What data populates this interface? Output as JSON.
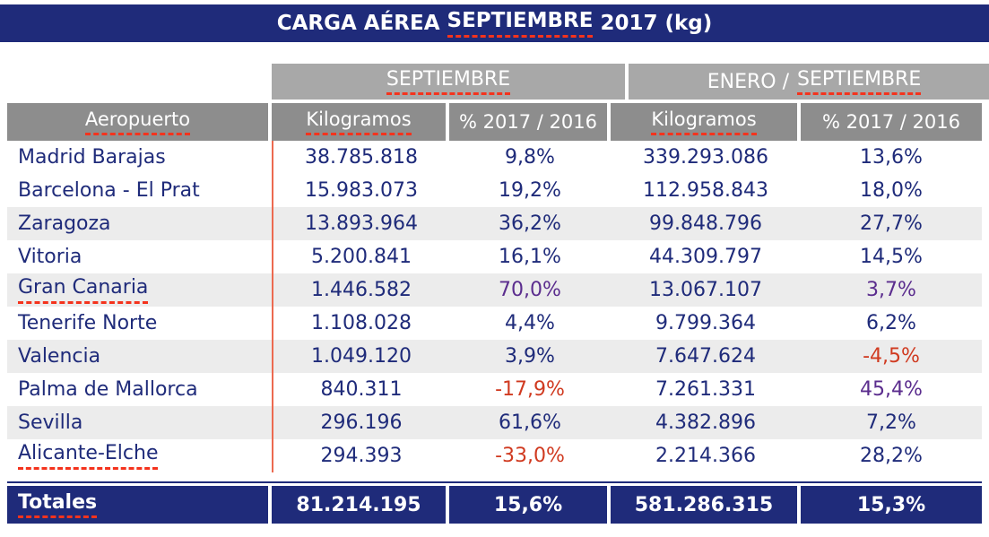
{
  "colors": {
    "navy": "#1f2b7a",
    "group_header_gray": "#a8a8a8",
    "column_header_gray": "#8d8d8d",
    "row_stripe": "#ececec",
    "negative_red": "#d03a20",
    "highlight_purple": "#5b2d8e",
    "squiggle_red": "#f4331d",
    "column_rule_orange": "#ec6a50"
  },
  "title": {
    "pre": "CARGA AÉREA",
    "marked": "SEPTIEMBRE",
    "post": "2017 (kg)"
  },
  "groups": {
    "sep": {
      "marked": "SEPTIEMBRE"
    },
    "ytd": {
      "pre": "ENERO /",
      "marked": "SEPTIEMBRE"
    }
  },
  "columns": {
    "airport": "Aeropuerto",
    "kg": "Kilogramos",
    "pct": "% 2017 / 2016"
  },
  "rows": [
    {
      "name": "Madrid Barajas",
      "sep_kg": "38.785.818",
      "sep_pct": "9,8%",
      "ytd_kg": "339.293.086",
      "ytd_pct": "13,6%"
    },
    {
      "name": "Barcelona - El Prat",
      "sep_kg": "15.983.073",
      "sep_pct": "19,2%",
      "ytd_kg": "112.958.843",
      "ytd_pct": "18,0%"
    },
    {
      "name": "Zaragoza",
      "sep_kg": "13.893.964",
      "sep_pct": "36,2%",
      "ytd_kg": "99.848.796",
      "ytd_pct": "27,7%"
    },
    {
      "name": "Vitoria",
      "sep_kg": "5.200.841",
      "sep_pct": "16,1%",
      "ytd_kg": "44.309.797",
      "ytd_pct": "14,5%"
    },
    {
      "name": "Gran Canaria",
      "mark": "marked",
      "sep_kg": "1.446.582",
      "sep_pct": "70,0%",
      "sep_tone": "purple",
      "ytd_kg": "13.067.107",
      "ytd_pct": "3,7%",
      "ytd_tone": "purple"
    },
    {
      "name": "Tenerife Norte",
      "sep_kg": "1.108.028",
      "sep_pct": "4,4%",
      "ytd_kg": "9.799.364",
      "ytd_pct": "6,2%"
    },
    {
      "name": "Valencia",
      "sep_kg": "1.049.120",
      "sep_pct": "3,9%",
      "ytd_kg": "7.647.624",
      "ytd_pct": "-4,5%",
      "ytd_tone": "red"
    },
    {
      "name": "Palma de Mallorca",
      "sep_kg": "840.311",
      "sep_pct": "-17,9%",
      "sep_tone": "red",
      "ytd_kg": "7.261.331",
      "ytd_pct": "45,4%",
      "ytd_tone": "purple"
    },
    {
      "name": "Sevilla",
      "sep_kg": "296.196",
      "sep_pct": "61,6%",
      "ytd_kg": "4.382.896",
      "ytd_pct": "7,2%"
    },
    {
      "name": "Alicante-Elche",
      "mark": "marked",
      "sep_kg": "294.393",
      "sep_pct": "-33,0%",
      "sep_tone": "red",
      "ytd_kg": "2.214.366",
      "ytd_pct": "28,2%"
    }
  ],
  "totals": {
    "label": "Totales",
    "sep_kg": "81.214.195",
    "sep_pct": "15,6%",
    "ytd_kg": "581.286.315",
    "ytd_pct": "15,3%"
  },
  "chart_data": {
    "type": "table",
    "title": "CARGA AÉREA SEPTIEMBRE 2017 (kg)",
    "units": "kg",
    "column_groups": [
      {
        "label": "SEPTIEMBRE",
        "columns": [
          "Kilogramos",
          "% 2017 / 2016"
        ]
      },
      {
        "label": "ENERO / SEPTIEMBRE",
        "columns": [
          "Kilogramos",
          "% 2017 / 2016"
        ]
      }
    ],
    "columns": [
      "Aeropuerto",
      "Kilogramos (SEPTIEMBRE)",
      "% 2017 / 2016 (SEPTIEMBRE)",
      "Kilogramos (ENERO / SEPTIEMBRE)",
      "% 2017 / 2016 (ENERO / SEPTIEMBRE)"
    ],
    "rows": [
      [
        "Madrid Barajas",
        38785818,
        9.8,
        339293086,
        13.6
      ],
      [
        "Barcelona - El Prat",
        15983073,
        19.2,
        112958843,
        18.0
      ],
      [
        "Zaragoza",
        13893964,
        36.2,
        99848796,
        27.7
      ],
      [
        "Vitoria",
        5200841,
        16.1,
        44309797,
        14.5
      ],
      [
        "Gran Canaria",
        1446582,
        70.0,
        13067107,
        3.7
      ],
      [
        "Tenerife Norte",
        1108028,
        4.4,
        9799364,
        6.2
      ],
      [
        "Valencia",
        1049120,
        3.9,
        7647624,
        -4.5
      ],
      [
        "Palma de Mallorca",
        840311,
        -17.9,
        7261331,
        45.4
      ],
      [
        "Sevilla",
        296196,
        61.6,
        4382896,
        7.2
      ],
      [
        "Alicante-Elche",
        294393,
        -33.0,
        2214366,
        28.2
      ]
    ],
    "totals": [
      "Totales",
      81214195,
      15.6,
      581286315,
      15.3
    ]
  }
}
